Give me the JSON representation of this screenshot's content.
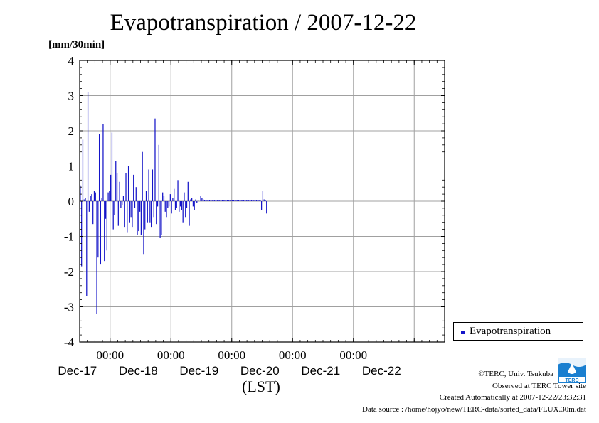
{
  "chart_data": {
    "type": "bar",
    "title": "Evapotranspiration / 2007-12-22",
    "ylabel": "[mm/30min]",
    "xlabel": "(LST)",
    "ylim": [
      -4,
      4
    ],
    "yticks": [
      -4,
      -3,
      -2,
      -1,
      0,
      1,
      2,
      3,
      4
    ],
    "xtick_labels": [
      {
        "time": "00:00",
        "date": "Dec-17"
      },
      {
        "time": "00:00",
        "date": "Dec-18"
      },
      {
        "time": "00:00",
        "date": "Dec-19"
      },
      {
        "time": "00:00",
        "date": "Dec-20"
      },
      {
        "time": "00:00",
        "date": "Dec-21"
      },
      {
        "time": "",
        "date": "Dec-22"
      }
    ],
    "x_range_days": [
      "Dec-16 12:00",
      "Dec-22 12:00"
    ],
    "grid": true,
    "legend_position": "right",
    "series": [
      {
        "name": "Evapotranspiration",
        "color": "#1414c8",
        "unit": "mm/30min",
        "start": "Dec-16 12:00",
        "interval_minutes": 30,
        "values": [
          0.45,
          -1.85,
          1.75,
          0.05,
          0.1,
          -2.7,
          3.1,
          -0.3,
          0.15,
          0.2,
          -0.65,
          0.3,
          0.25,
          -3.2,
          -1.6,
          1.9,
          -1.8,
          0.1,
          2.2,
          -1.7,
          -0.5,
          -1.4,
          0.25,
          0.3,
          0.75,
          1.95,
          -0.8,
          -0.4,
          1.15,
          0.8,
          -0.7,
          0.55,
          -0.2,
          -0.1,
          0.15,
          -0.75,
          0.8,
          -0.9,
          1.0,
          -0.6,
          -0.45,
          -0.75,
          0.75,
          -0.2,
          0.4,
          -0.95,
          -0.85,
          -0.3,
          -0.95,
          1.4,
          -1.5,
          -0.8,
          0.3,
          -0.6,
          0.9,
          -0.6,
          -0.75,
          0.9,
          -0.45,
          2.35,
          -0.65,
          -0.15,
          1.6,
          -1.05,
          -0.95,
          0.25,
          0.15,
          -0.3,
          -0.45,
          -0.2,
          -0.15,
          0.2,
          -0.35,
          0.1,
          0.35,
          -0.25,
          -0.2,
          0.6,
          -0.3,
          -0.15,
          -0.25,
          -0.6,
          0.25,
          -0.45,
          -0.2,
          0.55,
          -0.7,
          0.05,
          0.1,
          -0.15,
          -0.25,
          0.05,
          -0.05,
          0.02,
          0.0,
          0.15,
          0.1,
          0.05,
          0.03,
          0.02,
          0.02,
          0.02,
          0.02,
          0.02,
          0.02,
          0.02,
          0.02,
          0.02,
          0.02,
          0.02,
          0.02,
          0.02,
          0.02,
          0.02,
          0.02,
          0.02,
          0.02,
          0.02,
          0.02,
          0.02,
          0.02,
          0.02,
          0.02,
          0.02,
          0.02,
          0.02,
          0.02,
          0.02,
          0.02,
          0.02,
          0.02,
          0.02,
          0.02,
          0.02,
          0.02,
          0.02,
          0.02,
          0.02,
          0.02,
          0.02,
          0.02,
          0.02,
          0.02,
          -0.25,
          0.3,
          0.05,
          0.02,
          -0.35
        ]
      }
    ]
  },
  "credits": {
    "copyright": "©TERC, Univ. Tsukuba",
    "observed": "Observed at TERC Tower site",
    "created": "Created Automatically at 2007-12-22/23:32:31",
    "source": "Data source : /home/hojyo/new/TERC-data/sorted_data/FLUX.30m.dat",
    "logo_text": "TERC"
  },
  "colors": {
    "series": "#1414c8",
    "grid": "#a0a0a0",
    "logo": "#1a7fd0"
  }
}
